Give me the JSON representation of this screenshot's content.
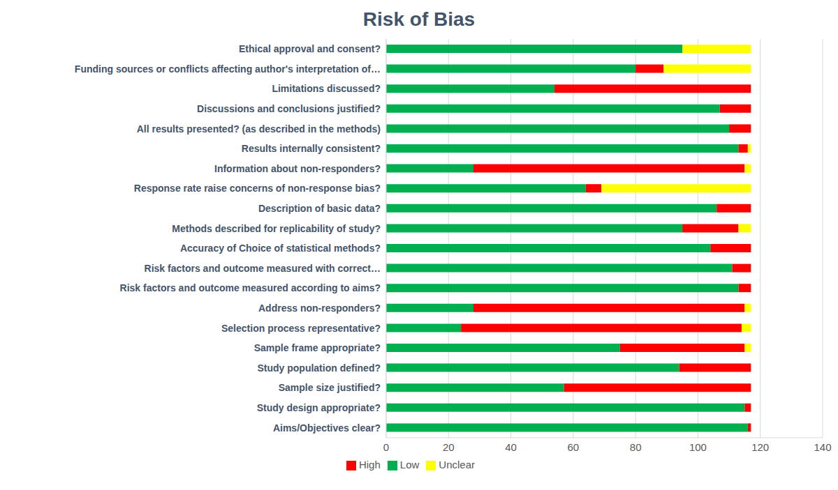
{
  "chart_data": {
    "type": "bar",
    "title": "Risk of Bias",
    "orientation": "horizontal",
    "stacked": true,
    "grid": true,
    "legend": "bottom",
    "categories": [
      "Ethical approval and consent?",
      "Funding sources or conflicts affecting author's interpretation of…",
      "Limitations discussed?",
      "Discussions and conclusions justified?",
      "All results presented? (as described in the methods)",
      "Results internally consistent?",
      "Information about non-responders?",
      "Response rate raise concerns of non-response bias?",
      "Description of basic data?",
      "Methods described for replicability of study?",
      "Accuracy of Choice of statistical methods?",
      "Risk factors and outcome measured with correct…",
      "Risk factors and outcome measured according to aims?",
      "Address non-responders?",
      "Selection process representative?",
      "Sample frame appropriate?",
      "Study population defined?",
      "Sample size justified?",
      "Study design appropriate?",
      "Aims/Objectives clear?"
    ],
    "series": [
      {
        "name": "Low",
        "color": "#00b050",
        "values": [
          95,
          80,
          54,
          107,
          110,
          113,
          28,
          64,
          106,
          95,
          104,
          111,
          113,
          28,
          24,
          75,
          94,
          57,
          115,
          116
        ]
      },
      {
        "name": "High",
        "color": "#ff0000",
        "values": [
          0,
          9,
          63,
          10,
          7,
          3,
          87,
          5,
          11,
          18,
          13,
          6,
          4,
          87,
          90,
          40,
          23,
          60,
          2,
          1
        ]
      },
      {
        "name": "Unclear",
        "color": "#ffff00",
        "values": [
          22,
          28,
          0,
          0,
          0,
          1,
          2,
          48,
          0,
          4,
          0,
          0,
          0,
          2,
          3,
          2,
          0,
          0,
          0,
          0
        ]
      }
    ],
    "xlim": [
      0,
      140
    ],
    "xticks": [
      0,
      20,
      40,
      60,
      80,
      100,
      120,
      140
    ]
  }
}
